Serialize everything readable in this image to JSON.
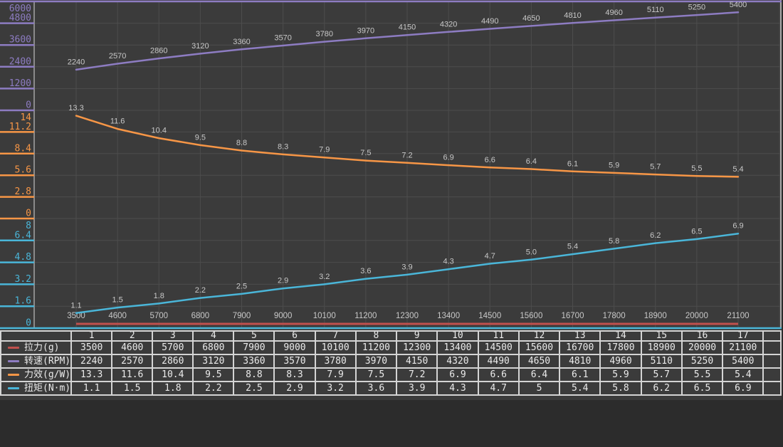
{
  "colors": {
    "page_bg": "#2c2c2c",
    "panel_bg": "#3b3b3b",
    "grid": "#4d4d4d",
    "plot_border_left": "#8a8a8a",
    "plot_border_right": "#a8a8a8",
    "data_label": "#c8c8c8",
    "x_label": "#c8c8c8",
    "table_border": "#d4d4d4",
    "table_text": "#ebebeb",
    "thrust_red": "#c0504d",
    "rpm_purple": "#8d7cc2",
    "efficiency_orange": "#f79646",
    "torque_cyan": "#4ab6d9"
  },
  "chart_data": {
    "type": "line",
    "title": "",
    "xlabel": "",
    "ylabel": "",
    "grid": true,
    "legend_position": "table-left",
    "stacked_axes": true,
    "x_categories": [
      3500,
      4600,
      5700,
      6800,
      7900,
      9000,
      10100,
      11200,
      12300,
      13400,
      14500,
      15600,
      16700,
      17800,
      18900,
      20000,
      21100
    ],
    "series": [
      {
        "name": "拉力(g)",
        "role": "x-baseline",
        "color": "#c0504d",
        "values": [
          3500,
          4600,
          5700,
          6800,
          7900,
          9000,
          10100,
          11200,
          12300,
          13400,
          14500,
          15600,
          16700,
          17800,
          18900,
          20000,
          21100
        ]
      },
      {
        "name": "转速(RPM)",
        "color": "#8d7cc2",
        "values": [
          2240,
          2570,
          2860,
          3120,
          3360,
          3570,
          3780,
          3970,
          4150,
          4320,
          4490,
          4650,
          4810,
          4960,
          5110,
          5250,
          5400
        ],
        "axis": {
          "min": 0,
          "max": 6000,
          "ticks": [
            "6000",
            "4800",
            "3600",
            "2400",
            "1200",
            "0"
          ]
        }
      },
      {
        "name": "力效(g/W)",
        "color": "#f79646",
        "values": [
          13.3,
          11.6,
          10.4,
          9.5,
          8.8,
          8.3,
          7.9,
          7.5,
          7.2,
          6.9,
          6.6,
          6.4,
          6.1,
          5.9,
          5.7,
          5.5,
          5.4
        ],
        "axis": {
          "min": 0,
          "max": 14,
          "ticks": [
            "14",
            "11.2",
            "8.4",
            "5.6",
            "2.8",
            "0"
          ]
        }
      },
      {
        "name": "扭矩(N·m)",
        "color": "#4ab6d9",
        "values": [
          1.1,
          1.5,
          1.8,
          2.2,
          2.5,
          2.9,
          3.2,
          3.6,
          3.9,
          4.3,
          4.7,
          5,
          5.4,
          5.8,
          6.2,
          6.5,
          6.9
        ],
        "labels": [
          "1.1",
          "1.5",
          "1.8",
          "2.2",
          "2.5",
          "2.9",
          "3.2",
          "3.6",
          "3.9",
          "4.3",
          "4.7",
          "5.0",
          "5.4",
          "5.8",
          "6.2",
          "6.5",
          "6.9"
        ],
        "axis": {
          "min": 0,
          "max": 8,
          "ticks": [
            "8",
            "6.4",
            "4.8",
            "3.2",
            "1.6",
            "0"
          ]
        }
      }
    ]
  },
  "table": {
    "col_headers": [
      "1",
      "2",
      "3",
      "4",
      "5",
      "6",
      "7",
      "8",
      "9",
      "10",
      "11",
      "12",
      "13",
      "14",
      "15",
      "16",
      "17"
    ],
    "rows": [
      {
        "label": "拉力(g)",
        "swatch_color": "#c0504d",
        "values": [
          "3500",
          "4600",
          "5700",
          "6800",
          "7900",
          "9000",
          "10100",
          "11200",
          "12300",
          "13400",
          "14500",
          "15600",
          "16700",
          "17800",
          "18900",
          "20000",
          "21100"
        ]
      },
      {
        "label": "转速(RPM)",
        "swatch_color": "#8d7cc2",
        "values": [
          "2240",
          "2570",
          "2860",
          "3120",
          "3360",
          "3570",
          "3780",
          "3970",
          "4150",
          "4320",
          "4490",
          "4650",
          "4810",
          "4960",
          "5110",
          "5250",
          "5400"
        ]
      },
      {
        "label": "力效(g/W)",
        "swatch_color": "#f79646",
        "values": [
          "13.3",
          "11.6",
          "10.4",
          "9.5",
          "8.8",
          "8.3",
          "7.9",
          "7.5",
          "7.2",
          "6.9",
          "6.6",
          "6.4",
          "6.1",
          "5.9",
          "5.7",
          "5.5",
          "5.4"
        ]
      },
      {
        "label": "扭矩(N·m)",
        "swatch_color": "#4ab6d9",
        "values": [
          "1.1",
          "1.5",
          "1.8",
          "2.2",
          "2.5",
          "2.9",
          "3.2",
          "3.6",
          "3.9",
          "4.3",
          "4.7",
          "5",
          "5.4",
          "5.8",
          "6.2",
          "6.5",
          "6.9"
        ]
      }
    ]
  }
}
